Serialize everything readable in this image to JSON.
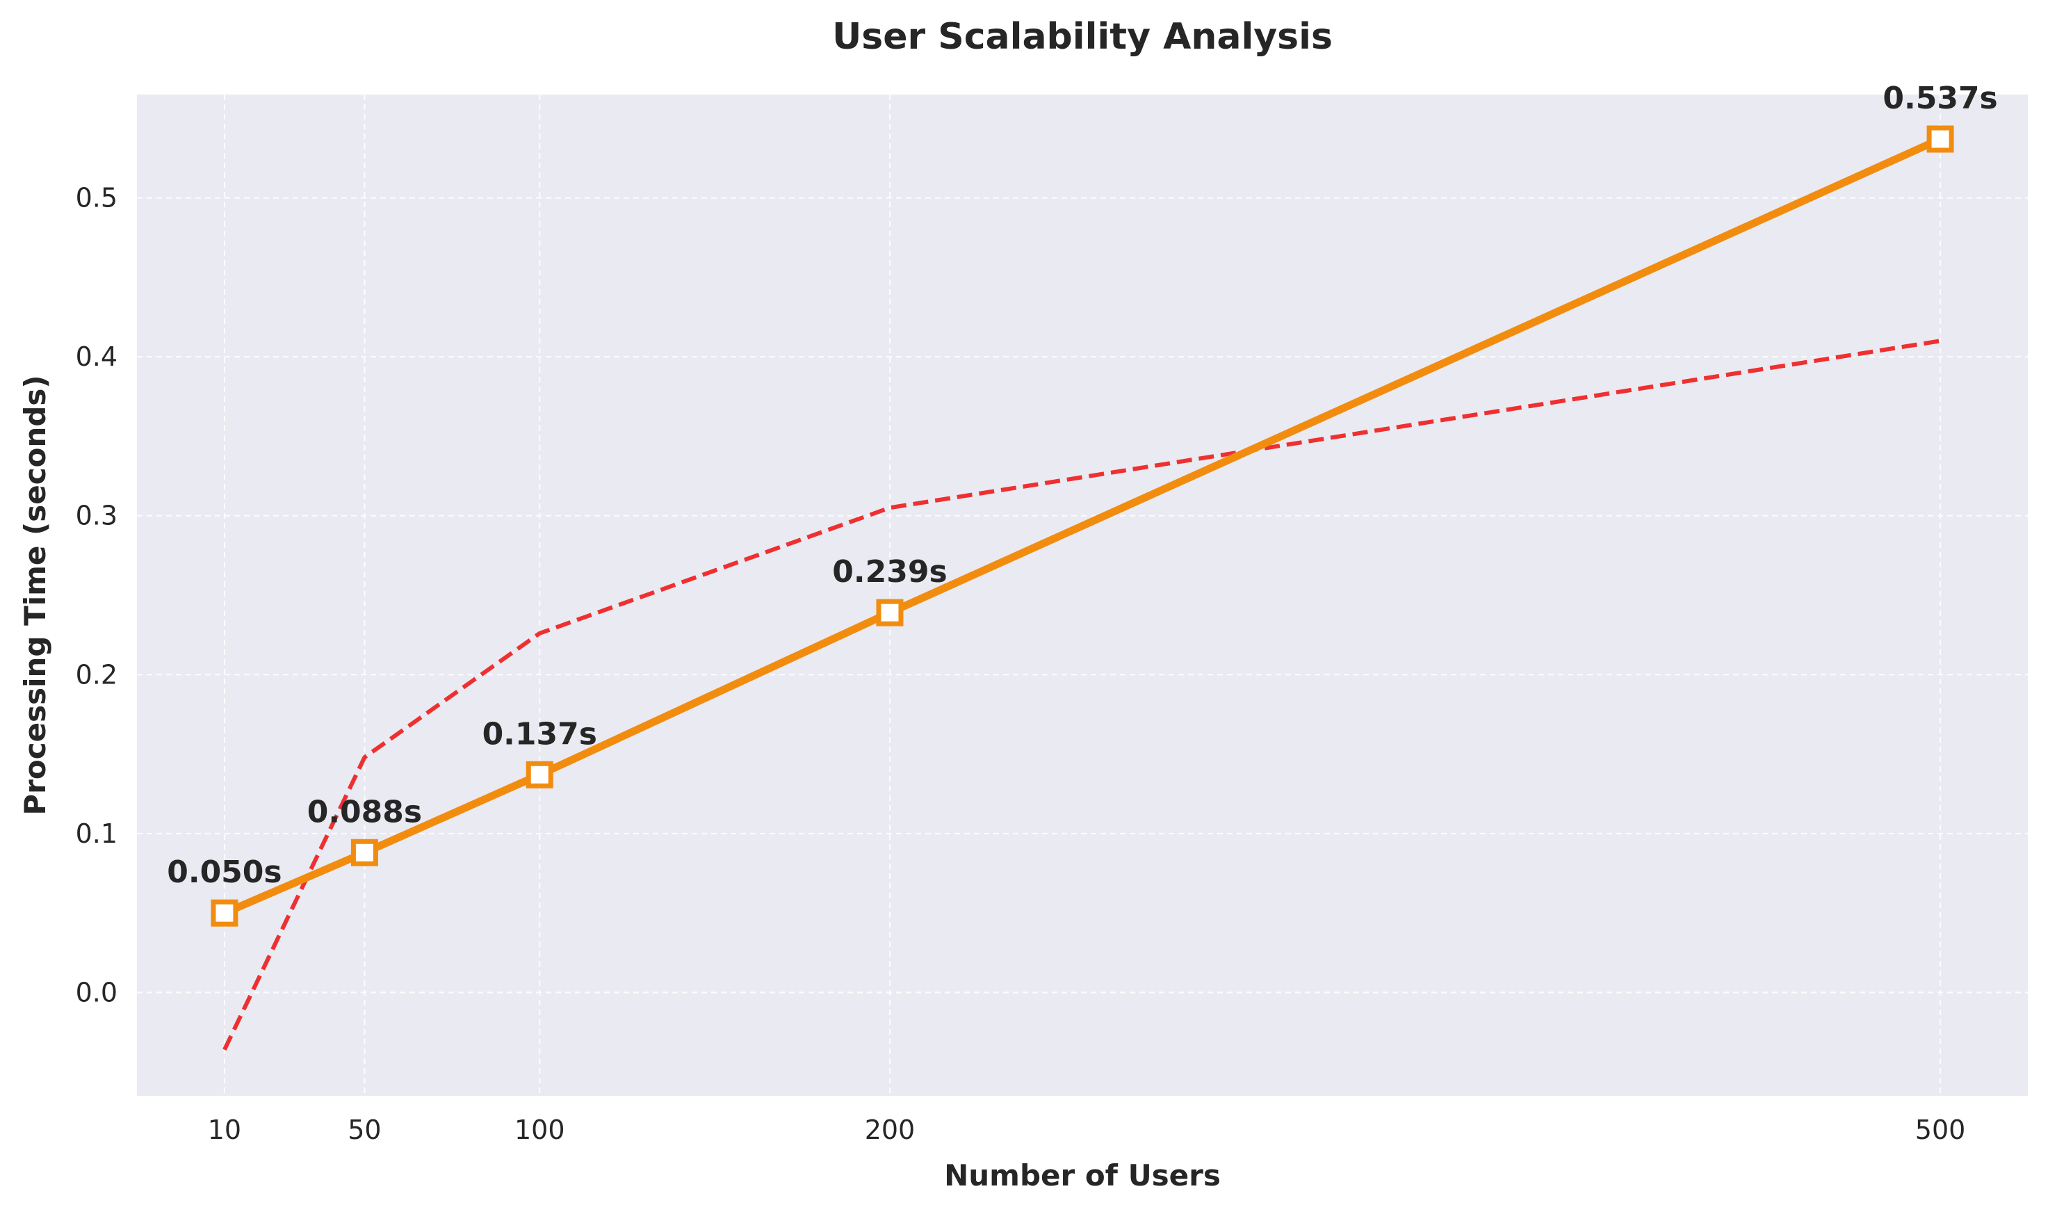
{
  "chart_data": {
    "type": "line",
    "title": "User Scalability Analysis",
    "xlabel": "Number of Users",
    "ylabel": "Processing Time (seconds)",
    "x_ticks": [
      10,
      50,
      100,
      200,
      500
    ],
    "y_ticks": [
      0.0,
      0.1,
      0.2,
      0.3,
      0.4,
      0.5
    ],
    "y_tick_labels": [
      "0.0",
      "0.1",
      "0.2",
      "0.3",
      "0.4",
      "0.5"
    ],
    "xlim": [
      -15,
      525
    ],
    "ylim": [
      -0.065,
      0.565
    ],
    "grid": true,
    "series": [
      {
        "style": "solid-square-markers",
        "color": "#F28C0F",
        "x": [
          10,
          50,
          100,
          200,
          500
        ],
        "y": [
          0.05,
          0.088,
          0.137,
          0.239,
          0.537
        ],
        "data_labels": [
          "0.050s",
          "0.088s",
          "0.137s",
          "0.239s",
          "0.537s"
        ]
      },
      {
        "style": "dashed",
        "color": "#EE3030",
        "x": [
          10,
          50,
          100,
          200,
          500
        ],
        "y": [
          -0.036,
          0.148,
          0.226,
          0.305,
          0.41
        ]
      }
    ]
  },
  "colors": {
    "plot_background": "#EAEAF2",
    "grid": "#FFFFFF",
    "text": "#262626"
  }
}
